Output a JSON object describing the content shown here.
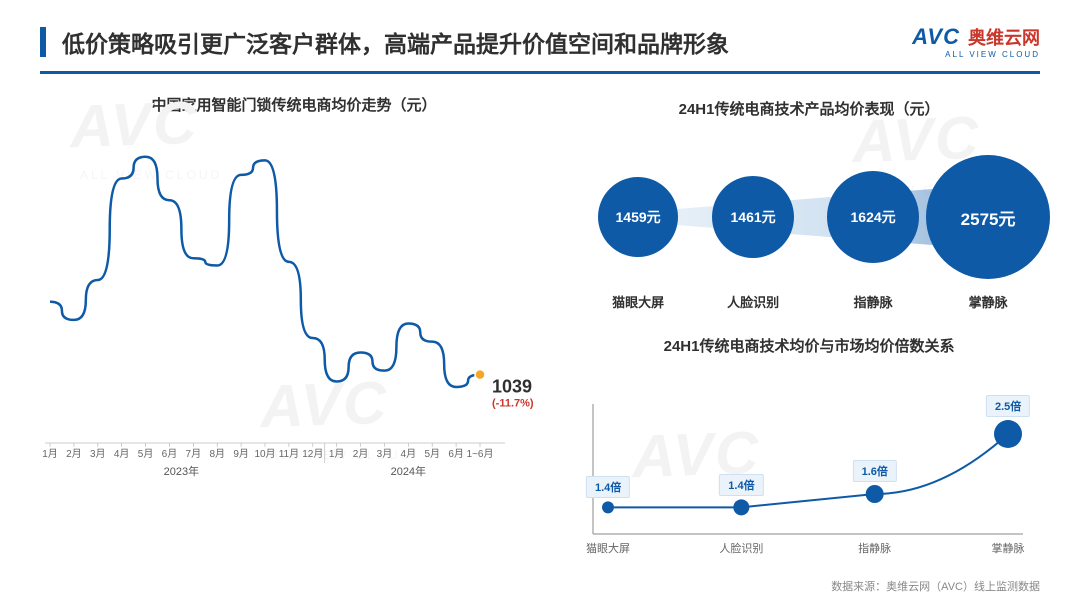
{
  "header": {
    "title": "低价策略吸引更广泛客户群体，高端产品提升价值空间和品牌形象",
    "accent_color": "#0e5aa7",
    "logo_text": "AVC",
    "logo_cn": "奥维云网",
    "logo_sub": "ALL VIEW CLOUD"
  },
  "line_chart": {
    "title": "中国家用智能门锁传统电商均价走势（元）",
    "type": "line",
    "line_color": "#0e5aa7",
    "line_width": 2.5,
    "highlight_color": "#f5a623",
    "highlight_value": "1039",
    "highlight_delta": "(-11.7%)",
    "background_color": "#ffffff",
    "ylim": [
      900,
      1700
    ],
    "x_labels": [
      "1月",
      "2月",
      "3月",
      "4月",
      "5月",
      "6月",
      "7月",
      "8月",
      "9月",
      "10月",
      "11月",
      "12月",
      "1月",
      "2月",
      "3月",
      "4月",
      "5月",
      "6月",
      "1~6月"
    ],
    "year_groups": [
      {
        "label": "2023年",
        "span": [
          0,
          11
        ]
      },
      {
        "label": "2024年",
        "span": [
          12,
          18
        ]
      }
    ],
    "values": [
      1240,
      1190,
      1300,
      1580,
      1640,
      1520,
      1360,
      1340,
      1590,
      1630,
      1350,
      1140,
      1020,
      1100,
      1050,
      1180,
      1130,
      1005,
      1039
    ]
  },
  "bubble_chart": {
    "title": "24H1传统电商技术产品均价表现（元）",
    "type": "bubble-row",
    "bubble_color": "#0e5aa7",
    "label_color": "#303030",
    "arrow_gradient": [
      "#d9e6f3",
      "#a7c7e4",
      "#0e5aa7"
    ],
    "items": [
      {
        "label": "猫眼大屏",
        "value": "1459元",
        "radius": 40
      },
      {
        "label": "人脸识别",
        "value": "1461元",
        "radius": 41
      },
      {
        "label": "指静脉",
        "value": "1624元",
        "radius": 46
      },
      {
        "label": "掌静脉",
        "value": "2575元",
        "radius": 62
      }
    ]
  },
  "ratio_chart": {
    "title": "24H1传统电商技术均价与市场均价倍数关系",
    "type": "line-scatter",
    "line_color": "#0e5aa7",
    "point_color": "#0e5aa7",
    "badge_bg": "#eaf2fa",
    "badge_border": "#cfe0f1",
    "ylim": [
      1.0,
      2.8
    ],
    "items": [
      {
        "label": "猫眼大屏",
        "ratio": 1.4,
        "badge": "1.4倍",
        "point_r": 6
      },
      {
        "label": "人脸识别",
        "ratio": 1.4,
        "badge": "1.4倍",
        "point_r": 8
      },
      {
        "label": "指静脉",
        "ratio": 1.6,
        "badge": "1.6倍",
        "point_r": 9
      },
      {
        "label": "掌静脉",
        "ratio": 2.5,
        "badge": "2.5倍",
        "point_r": 14
      }
    ]
  },
  "footer": {
    "text": "数据来源：奥维云网（AVC）线上监测数据"
  },
  "watermark": {
    "text": "AVC",
    "sub": "ALL VIEW CLOUD",
    "cn": "奥维云网"
  }
}
